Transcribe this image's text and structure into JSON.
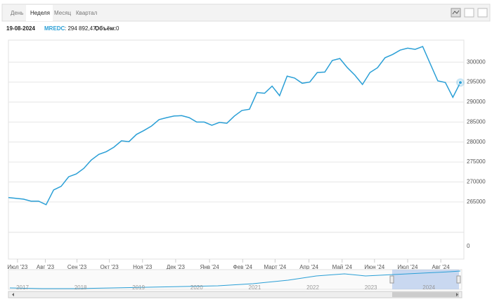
{
  "tabs": [
    "День",
    "Неделя",
    "Месяц",
    "Квартал"
  ],
  "selected_tab": 1,
  "info": {
    "date": "19-08-2024",
    "symbol": "MREDC",
    "price_text": ": 294 892,47,",
    "volume_label": "Объём:",
    "volume": "0"
  },
  "chart_data": {
    "type": "line",
    "color": "#2a9fd6",
    "values": [
      266100,
      265900,
      265700,
      265200,
      265200,
      264300,
      268000,
      268900,
      271300,
      272000,
      273400,
      275500,
      276900,
      277600,
      278700,
      280300,
      280100,
      281900,
      282900,
      284000,
      285600,
      286100,
      286500,
      286600,
      286100,
      285000,
      285000,
      284200,
      284900,
      284700,
      286500,
      287900,
      288200,
      292400,
      292200,
      294000,
      291600,
      296500,
      296000,
      294700,
      295000,
      297400,
      297500,
      300400,
      300900,
      298600,
      296700,
      294400,
      297400,
      298600,
      301100,
      301900,
      303000,
      303500,
      303200,
      303900,
      299600,
      295300,
      294900,
      291200,
      294892.47
    ],
    "xticks": [
      {
        "value": 1.2,
        "label": "Июл '23"
      },
      {
        "value": 4.9,
        "label": "Авг '23"
      },
      {
        "value": 9.1,
        "label": "Сен '23"
      },
      {
        "value": 13.4,
        "label": "Окт '23"
      },
      {
        "value": 17.8,
        "label": "Ноя '23"
      },
      {
        "value": 22.2,
        "label": "Дек '23"
      },
      {
        "value": 26.7,
        "label": "Янв '24"
      },
      {
        "value": 31.1,
        "label": "Фев '24"
      },
      {
        "value": 35.4,
        "label": "Март '24"
      },
      {
        "value": 39.9,
        "label": "Апр '24"
      },
      {
        "value": 44.3,
        "label": "Май '24"
      },
      {
        "value": 48.6,
        "label": "Июн '24"
      },
      {
        "value": 53,
        "label": "Июл '24"
      },
      {
        "value": 57.4,
        "label": "Авг '24"
      }
    ],
    "ylim": [
      257400,
      305500
    ],
    "yticks": [
      265000,
      270000,
      275000,
      280000,
      285000,
      290000,
      295000,
      300000
    ],
    "volume_yticks": [
      0
    ],
    "grid": true
  },
  "navigator": {
    "years": [
      "2017",
      "2018",
      "2019",
      "2020",
      "2021",
      "2022",
      "2023",
      "2024"
    ]
  }
}
